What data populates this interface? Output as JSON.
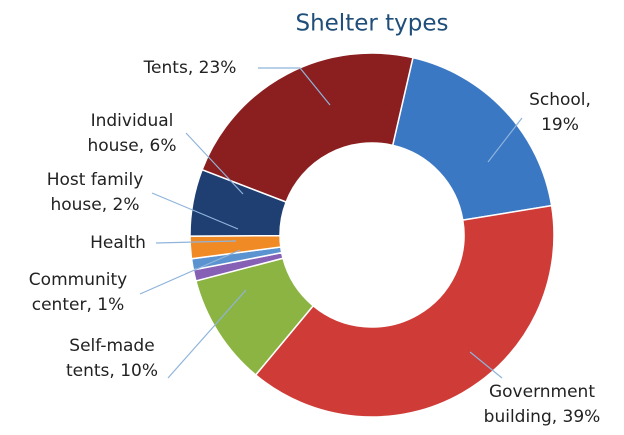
{
  "chart_data": {
    "type": "pie",
    "title": "Shelter types",
    "donut": true,
    "labels": [
      [
        "School,",
        "19%"
      ],
      [
        "Government",
        "building, 39%"
      ],
      [
        "Self-made",
        "tents, 10%"
      ],
      [
        "Community",
        "center, 1%"
      ],
      [
        "Health"
      ],
      [
        "Host family",
        "house, 2%"
      ],
      [
        "Individual",
        "house, 6%"
      ],
      [
        "Tents, 23%"
      ]
    ],
    "values": [
      19,
      39,
      10,
      1,
      1,
      2,
      6,
      23
    ],
    "colors": [
      "#3b78c4",
      "#cf3b37",
      "#8cb443",
      "#8660b5",
      "#5b93d0",
      "#f08a24",
      "#1f3f72",
      "#8b1e1e"
    ]
  }
}
